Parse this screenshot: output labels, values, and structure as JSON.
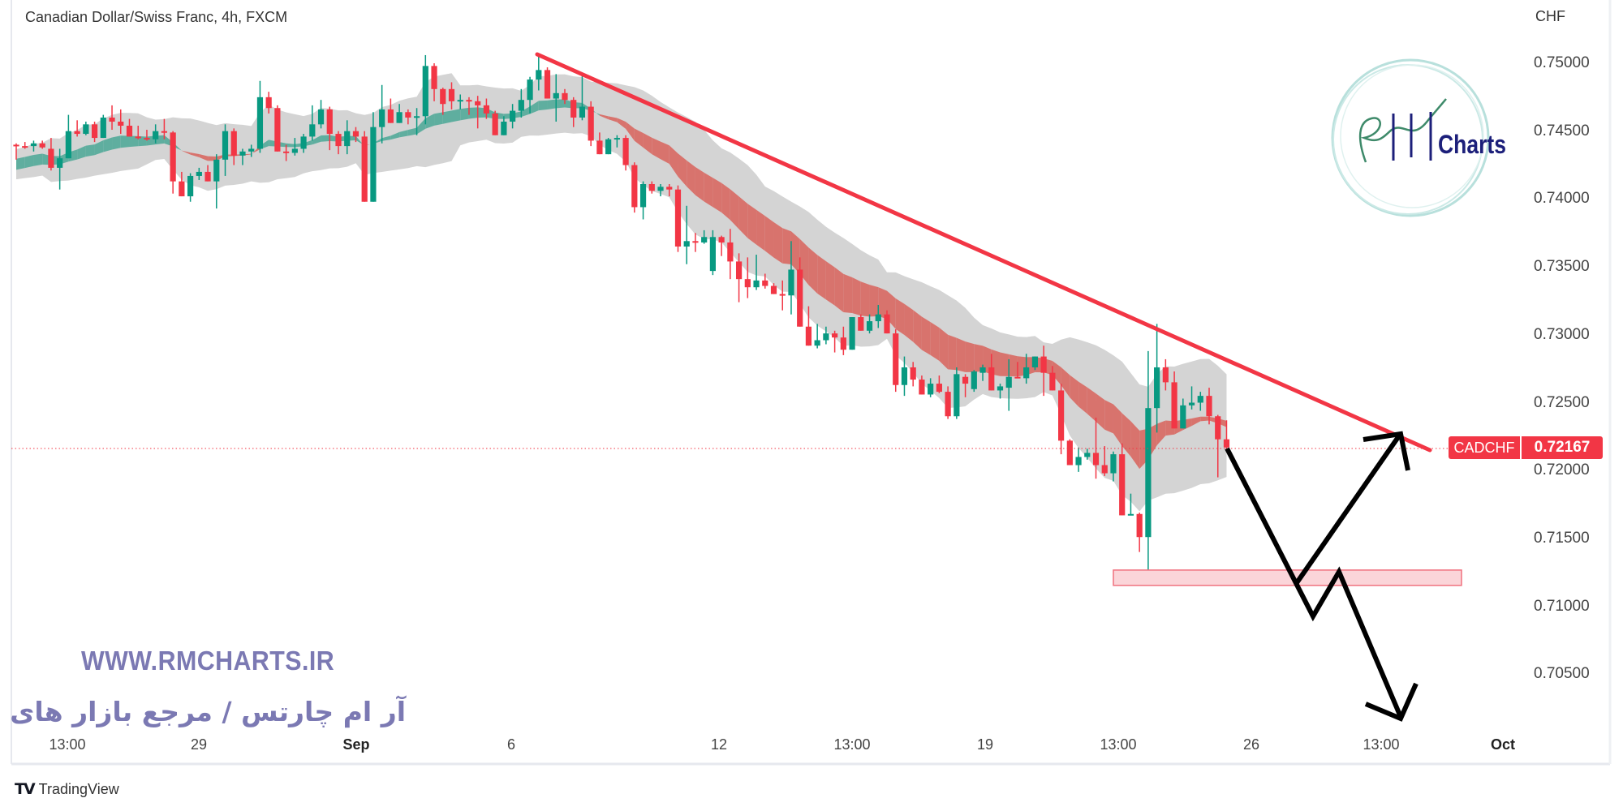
{
  "header": {
    "title": "Canadian Dollar/Swiss Franc, 4h, FXCM"
  },
  "chart_data": {
    "type": "candlestick",
    "symbol": "CADCHF",
    "currency": "CHF",
    "last_price": "0.72167",
    "ylim": [
      0.7015,
      0.752
    ],
    "price_ticks": [
      "0.75000",
      "0.74500",
      "0.74000",
      "0.73500",
      "0.73000",
      "0.72500",
      "0.72000",
      "0.71500",
      "0.71000",
      "0.70500"
    ],
    "time_ticks": [
      {
        "label": "13:00",
        "bold": false
      },
      {
        "label": "29",
        "bold": false
      },
      {
        "label": "Sep",
        "bold": true
      },
      {
        "label": "6",
        "bold": false
      },
      {
        "label": "12",
        "bold": false
      },
      {
        "label": "13:00",
        "bold": false
      },
      {
        "label": "19",
        "bold": false
      },
      {
        "label": "13:00",
        "bold": false
      },
      {
        "label": "26",
        "bold": false
      },
      {
        "label": "13:00",
        "bold": false
      },
      {
        "label": "Oct",
        "bold": true
      }
    ],
    "colors": {
      "up": "#089981",
      "down": "#f23645",
      "band_up": "#5fae9f",
      "band_down": "#d8736d",
      "cloud": "#d4d4d4",
      "trendline": "#f23645",
      "zone_fill": "#fbd5d9",
      "zone_border": "#f0707e",
      "projection": "#000000"
    },
    "support_zone": [
      0.71154,
      0.71267
    ],
    "candles": [
      [
        0.744,
        0.7441,
        0.7429,
        0.7439
      ],
      [
        0.7439,
        0.7442,
        0.7437,
        0.7438
      ],
      [
        0.7439,
        0.7443,
        0.7435,
        0.7441
      ],
      [
        0.7441,
        0.7443,
        0.7437,
        0.7438
      ],
      [
        0.7437,
        0.7445,
        0.7421,
        0.7423
      ],
      [
        0.7423,
        0.7437,
        0.7407,
        0.743
      ],
      [
        0.743,
        0.7462,
        0.743,
        0.745
      ],
      [
        0.745,
        0.7458,
        0.7446,
        0.7448
      ],
      [
        0.7448,
        0.7457,
        0.7447,
        0.7455
      ],
      [
        0.7455,
        0.7457,
        0.7442,
        0.7445
      ],
      [
        0.7445,
        0.7462,
        0.7445,
        0.746
      ],
      [
        0.746,
        0.7469,
        0.7451,
        0.7457
      ],
      [
        0.7457,
        0.7466,
        0.7448,
        0.7454
      ],
      [
        0.7454,
        0.7459,
        0.7446,
        0.7446
      ],
      [
        0.7446,
        0.7454,
        0.7444,
        0.7445
      ],
      [
        0.7445,
        0.7451,
        0.7443,
        0.7444
      ],
      [
        0.7444,
        0.7455,
        0.7441,
        0.745
      ],
      [
        0.745,
        0.7459,
        0.7444,
        0.7449
      ],
      [
        0.7449,
        0.745,
        0.7404,
        0.7413
      ],
      [
        0.7413,
        0.742,
        0.7402,
        0.7402
      ],
      [
        0.7402,
        0.7419,
        0.7398,
        0.7417
      ],
      [
        0.7417,
        0.7423,
        0.7414,
        0.742
      ],
      [
        0.742,
        0.7425,
        0.7413,
        0.7413
      ],
      [
        0.7413,
        0.7433,
        0.7393,
        0.7429
      ],
      [
        0.7429,
        0.7455,
        0.7417,
        0.745
      ],
      [
        0.745,
        0.7452,
        0.7425,
        0.7432
      ],
      [
        0.7432,
        0.7437,
        0.7425,
        0.7435
      ],
      [
        0.7435,
        0.744,
        0.7431,
        0.7437
      ],
      [
        0.7437,
        0.7487,
        0.7434,
        0.7475
      ],
      [
        0.7475,
        0.7479,
        0.7463,
        0.7467
      ],
      [
        0.7467,
        0.7469,
        0.7435,
        0.7435
      ],
      [
        0.7435,
        0.744,
        0.7428,
        0.7434
      ],
      [
        0.7434,
        0.7445,
        0.7432,
        0.7437
      ],
      [
        0.7437,
        0.7448,
        0.7434,
        0.7446
      ],
      [
        0.7446,
        0.7469,
        0.7443,
        0.7455
      ],
      [
        0.7455,
        0.7473,
        0.7452,
        0.7466
      ],
      [
        0.7466,
        0.7468,
        0.7436,
        0.7448
      ],
      [
        0.7448,
        0.745,
        0.7433,
        0.7439
      ],
      [
        0.7439,
        0.7458,
        0.7433,
        0.745
      ],
      [
        0.745,
        0.7453,
        0.7442,
        0.7446
      ],
      [
        0.7446,
        0.745,
        0.7398,
        0.7398
      ],
      [
        0.7398,
        0.7464,
        0.7398,
        0.7453
      ],
      [
        0.7453,
        0.7484,
        0.7441,
        0.7466
      ],
      [
        0.7466,
        0.7474,
        0.7456,
        0.7456
      ],
      [
        0.7456,
        0.747,
        0.7456,
        0.7464
      ],
      [
        0.7464,
        0.7466,
        0.7455,
        0.746
      ],
      [
        0.746,
        0.7467,
        0.7447,
        0.7461
      ],
      [
        0.7461,
        0.7506,
        0.7455,
        0.7498
      ],
      [
        0.7498,
        0.75,
        0.7472,
        0.7481
      ],
      [
        0.7481,
        0.7482,
        0.7462,
        0.747
      ],
      [
        0.7481,
        0.7486,
        0.7466,
        0.7472
      ],
      [
        0.7472,
        0.7477,
        0.7466,
        0.7473
      ],
      [
        0.7473,
        0.7475,
        0.7462,
        0.7472
      ],
      [
        0.7472,
        0.7476,
        0.7452,
        0.7469
      ],
      [
        0.7469,
        0.7474,
        0.7459,
        0.7463
      ],
      [
        0.7463,
        0.7465,
        0.7447,
        0.7447
      ],
      [
        0.7447,
        0.7461,
        0.7447,
        0.7457
      ],
      [
        0.7457,
        0.747,
        0.7452,
        0.7465
      ],
      [
        0.7465,
        0.7481,
        0.746,
        0.7473
      ],
      [
        0.7473,
        0.749,
        0.7463,
        0.7488
      ],
      [
        0.7488,
        0.7506,
        0.748,
        0.7495
      ],
      [
        0.7495,
        0.7497,
        0.7474,
        0.7474
      ],
      [
        0.7474,
        0.7492,
        0.7457,
        0.7478
      ],
      [
        0.7478,
        0.7481,
        0.747,
        0.7473
      ],
      [
        0.7473,
        0.7475,
        0.7453,
        0.746
      ],
      [
        0.746,
        0.7492,
        0.7458,
        0.7468
      ],
      [
        0.7468,
        0.7472,
        0.7439,
        0.7443
      ],
      [
        0.7443,
        0.7449,
        0.7433,
        0.7433
      ],
      [
        0.7433,
        0.7445,
        0.7433,
        0.7444
      ],
      [
        0.7444,
        0.7447,
        0.7438,
        0.7445
      ],
      [
        0.7445,
        0.7447,
        0.7421,
        0.7425
      ],
      [
        0.7425,
        0.7427,
        0.739,
        0.7394
      ],
      [
        0.7394,
        0.7413,
        0.7385,
        0.7411
      ],
      [
        0.7411,
        0.7413,
        0.7404,
        0.7406
      ],
      [
        0.7406,
        0.7411,
        0.7402,
        0.7409
      ],
      [
        0.7409,
        0.7411,
        0.7402,
        0.7407
      ],
      [
        0.7407,
        0.741,
        0.7361,
        0.7365
      ],
      [
        0.7365,
        0.7395,
        0.7352,
        0.7369
      ],
      [
        0.7369,
        0.7375,
        0.7361,
        0.7368
      ],
      [
        0.7368,
        0.7377,
        0.7367,
        0.7372
      ],
      [
        0.7347,
        0.7377,
        0.7344,
        0.7372
      ],
      [
        0.7372,
        0.7373,
        0.7358,
        0.7368
      ],
      [
        0.7368,
        0.7378,
        0.7341,
        0.7354
      ],
      [
        0.7354,
        0.736,
        0.7324,
        0.7341
      ],
      [
        0.7341,
        0.7357,
        0.7327,
        0.7335
      ],
      [
        0.7335,
        0.7359,
        0.7333,
        0.734
      ],
      [
        0.734,
        0.7345,
        0.7334,
        0.7336
      ],
      [
        0.7336,
        0.7338,
        0.733,
        0.733
      ],
      [
        0.733,
        0.734,
        0.7318,
        0.7329
      ],
      [
        0.7329,
        0.7369,
        0.7315,
        0.7348
      ],
      [
        0.7348,
        0.7357,
        0.7306,
        0.7306
      ],
      [
        0.7306,
        0.7321,
        0.7292,
        0.7292
      ],
      [
        0.7292,
        0.7308,
        0.729,
        0.7296
      ],
      [
        0.7296,
        0.7306,
        0.7293,
        0.7301
      ],
      [
        0.7301,
        0.7303,
        0.7287,
        0.7298
      ],
      [
        0.7298,
        0.7306,
        0.7285,
        0.7289
      ],
      [
        0.7289,
        0.7313,
        0.7289,
        0.7313
      ],
      [
        0.7313,
        0.7315,
        0.7303,
        0.7303
      ],
      [
        0.7303,
        0.7315,
        0.7301,
        0.731
      ],
      [
        0.731,
        0.7322,
        0.7305,
        0.7315
      ],
      [
        0.7315,
        0.7318,
        0.7301,
        0.7301
      ],
      [
        0.7301,
        0.7304,
        0.7258,
        0.7263
      ],
      [
        0.7263,
        0.7284,
        0.7255,
        0.7276
      ],
      [
        0.7276,
        0.728,
        0.7262,
        0.7267
      ],
      [
        0.7267,
        0.727,
        0.7256,
        0.7256
      ],
      [
        0.7256,
        0.7268,
        0.7254,
        0.7264
      ],
      [
        0.7264,
        0.727,
        0.7257,
        0.7258
      ],
      [
        0.7258,
        0.7262,
        0.7238,
        0.724
      ],
      [
        0.724,
        0.7276,
        0.7238,
        0.7271
      ],
      [
        0.7269,
        0.7271,
        0.7254,
        0.7264
      ],
      [
        0.726,
        0.7274,
        0.7258,
        0.7273
      ],
      [
        0.7272,
        0.7278,
        0.7266,
        0.7276
      ],
      [
        0.7276,
        0.7286,
        0.7259,
        0.7259
      ],
      [
        0.7259,
        0.7264,
        0.7253,
        0.7262
      ],
      [
        0.7261,
        0.7282,
        0.7244,
        0.7269
      ],
      [
        0.7269,
        0.728,
        0.7268,
        0.7268
      ],
      [
        0.7268,
        0.7286,
        0.7264,
        0.7276
      ],
      [
        0.7276,
        0.7284,
        0.7274,
        0.7284
      ],
      [
        0.7284,
        0.7292,
        0.7255,
        0.7272
      ],
      [
        0.7272,
        0.7277,
        0.7259,
        0.7259
      ],
      [
        0.7259,
        0.7264,
        0.7212,
        0.7222
      ],
      [
        0.7222,
        0.7223,
        0.7204,
        0.7204
      ],
      [
        0.7204,
        0.7217,
        0.7199,
        0.721
      ],
      [
        0.721,
        0.7216,
        0.7208,
        0.7213
      ],
      [
        0.7213,
        0.7239,
        0.7194,
        0.7204
      ],
      [
        0.7204,
        0.7218,
        0.7196,
        0.7198
      ],
      [
        0.7198,
        0.7214,
        0.7192,
        0.7212
      ],
      [
        0.7212,
        0.722,
        0.7167,
        0.7167
      ],
      [
        0.7167,
        0.7183,
        0.7167,
        0.7168
      ],
      [
        0.7168,
        0.7169,
        0.714,
        0.7151
      ],
      [
        0.7151,
        0.7288,
        0.7116,
        0.7246
      ],
      [
        0.7246,
        0.7308,
        0.7228,
        0.7276
      ],
      [
        0.7276,
        0.7282,
        0.7259,
        0.7265
      ],
      [
        0.7265,
        0.7273,
        0.7231,
        0.7231
      ],
      [
        0.7231,
        0.7253,
        0.7231,
        0.7248
      ],
      [
        0.7248,
        0.7262,
        0.7245,
        0.725
      ],
      [
        0.725,
        0.7258,
        0.7244,
        0.7255
      ],
      [
        0.7255,
        0.7261,
        0.7234,
        0.724
      ],
      [
        0.724,
        0.7241,
        0.7195,
        0.7223
      ],
      [
        0.7223,
        0.7237,
        0.7216,
        0.7217
      ]
    ]
  },
  "watermark": {
    "url": "WWW.RMCHARTS.IR",
    "persian": "آر ام چارتس / مرجع بازار های مالی",
    "logo_text": "Charts"
  },
  "footer": {
    "brand": "TradingView",
    "brand_mark": "TV"
  }
}
